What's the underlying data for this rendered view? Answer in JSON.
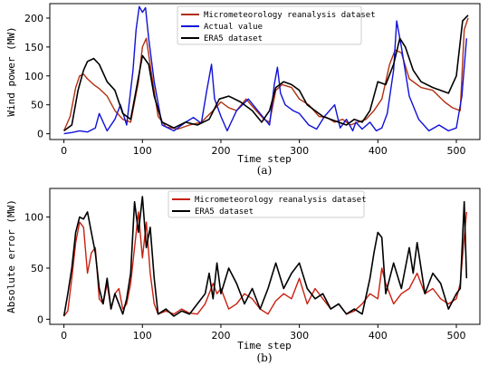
{
  "panels": [
    {
      "ylabel": "Wind power (MW)",
      "xlabel": "Time step",
      "caption": "(a)",
      "legend": [
        "Micrometeorology reanalysis dataset",
        "Actual value",
        "ERA5 dataset"
      ]
    },
    {
      "ylabel": "Absolute error (MW)",
      "xlabel": "Time step",
      "caption": "(b)",
      "legend": [
        "Micrometeorology reanalysis dataset",
        "ERA5 dataset"
      ]
    }
  ],
  "chart_data": [
    {
      "type": "line",
      "title": "",
      "xlabel": "Time step",
      "ylabel": "Wind power (MW)",
      "xlim": [
        -18,
        530
      ],
      "ylim": [
        -10,
        225
      ],
      "xticks": [
        0,
        100,
        200,
        300,
        400,
        500
      ],
      "yticks": [
        0,
        50,
        100,
        150,
        200
      ],
      "grid": false,
      "legend_position": "top-center",
      "series": [
        {
          "name": "Micrometeorology reanalysis dataset",
          "color": "#b03010",
          "x": [
            0,
            8,
            15,
            20,
            25,
            30,
            38,
            45,
            55,
            65,
            75,
            85,
            95,
            100,
            105,
            112,
            120,
            130,
            145,
            160,
            175,
            190,
            200,
            210,
            220,
            232,
            245,
            255,
            262,
            270,
            278,
            290,
            300,
            312,
            325,
            335,
            345,
            355,
            365,
            375,
            385,
            395,
            405,
            415,
            422,
            430,
            440,
            455,
            470,
            485,
            495,
            505,
            510,
            515
          ],
          "y": [
            5,
            30,
            80,
            100,
            103,
            95,
            85,
            78,
            65,
            40,
            25,
            20,
            90,
            150,
            165,
            100,
            30,
            12,
            8,
            15,
            20,
            40,
            55,
            45,
            40,
            60,
            40,
            25,
            20,
            75,
            85,
            80,
            60,
            50,
            30,
            28,
            20,
            25,
            15,
            20,
            25,
            40,
            60,
            120,
            145,
            140,
            95,
            80,
            75,
            55,
            45,
            40,
            180,
            200
          ]
        },
        {
          "name": "Actual value",
          "color": "#1010d8",
          "x": [
            0,
            10,
            20,
            30,
            40,
            45,
            55,
            65,
            72,
            80,
            88,
            92,
            96,
            100,
            104,
            108,
            115,
            125,
            140,
            155,
            165,
            175,
            182,
            188,
            192,
            200,
            208,
            220,
            235,
            250,
            262,
            268,
            272,
            276,
            282,
            292,
            300,
            312,
            322,
            332,
            345,
            352,
            360,
            368,
            372,
            380,
            390,
            398,
            405,
            412,
            420,
            424,
            430,
            440,
            452,
            465,
            478,
            490,
            500,
            507,
            513
          ],
          "y": [
            0,
            2,
            5,
            3,
            10,
            35,
            5,
            25,
            50,
            15,
            110,
            180,
            220,
            210,
            218,
            165,
            90,
            15,
            5,
            20,
            28,
            18,
            75,
            120,
            60,
            30,
            5,
            40,
            60,
            35,
            15,
            85,
            115,
            70,
            50,
            40,
            35,
            15,
            8,
            30,
            50,
            10,
            25,
            5,
            20,
            8,
            20,
            5,
            10,
            35,
            110,
            195,
            150,
            65,
            25,
            5,
            15,
            5,
            10,
            65,
            165
          ]
        },
        {
          "name": "ERA5 dataset",
          "color": "#000000",
          "x": [
            0,
            10,
            18,
            25,
            30,
            38,
            45,
            55,
            65,
            75,
            85,
            92,
            100,
            108,
            115,
            125,
            140,
            155,
            170,
            185,
            198,
            210,
            225,
            240,
            252,
            262,
            270,
            280,
            290,
            300,
            310,
            320,
            330,
            340,
            350,
            360,
            370,
            380,
            390,
            400,
            410,
            420,
            428,
            435,
            445,
            455,
            470,
            490,
            500,
            508,
            515
          ],
          "y": [
            5,
            15,
            75,
            110,
            125,
            130,
            120,
            90,
            75,
            35,
            25,
            75,
            135,
            120,
            65,
            20,
            10,
            20,
            15,
            25,
            60,
            65,
            55,
            40,
            20,
            40,
            80,
            90,
            85,
            75,
            50,
            40,
            30,
            25,
            20,
            15,
            25,
            20,
            40,
            90,
            85,
            120,
            165,
            150,
            110,
            90,
            80,
            70,
            100,
            195,
            205
          ]
        }
      ]
    },
    {
      "type": "line",
      "title": "",
      "xlabel": "Time step",
      "ylabel": "Absolute error (MW)",
      "xlim": [
        -18,
        530
      ],
      "ylim": [
        -5,
        128
      ],
      "xticks": [
        0,
        100,
        200,
        300,
        400,
        500
      ],
      "yticks": [
        0,
        50,
        100
      ],
      "grid": false,
      "legend_position": "top-center",
      "series": [
        {
          "name": "Micrometeorology reanalysis dataset",
          "color": "#c82010",
          "x": [
            0,
            5,
            10,
            15,
            20,
            25,
            30,
            35,
            40,
            45,
            50,
            55,
            60,
            65,
            70,
            75,
            80,
            85,
            90,
            95,
            100,
            105,
            110,
            115,
            120,
            130,
            140,
            150,
            160,
            170,
            180,
            190,
            195,
            200,
            210,
            220,
            230,
            240,
            250,
            260,
            270,
            280,
            290,
            300,
            310,
            320,
            330,
            340,
            350,
            360,
            370,
            380,
            390,
            400,
            405,
            410,
            420,
            430,
            440,
            450,
            460,
            470,
            480,
            490,
            500,
            505,
            510,
            513
          ],
          "y": [
            3,
            8,
            40,
            75,
            95,
            90,
            45,
            65,
            70,
            20,
            15,
            35,
            10,
            25,
            30,
            10,
            15,
            35,
            70,
            105,
            60,
            95,
            45,
            15,
            5,
            8,
            5,
            10,
            6,
            5,
            15,
            35,
            25,
            30,
            10,
            15,
            25,
            20,
            10,
            5,
            18,
            25,
            20,
            40,
            15,
            30,
            20,
            10,
            15,
            5,
            8,
            15,
            25,
            20,
            50,
            35,
            15,
            25,
            30,
            45,
            25,
            30,
            20,
            15,
            20,
            35,
            80,
            105
          ]
        },
        {
          "name": "ERA5 dataset",
          "color": "#000000",
          "x": [
            0,
            5,
            10,
            15,
            20,
            25,
            30,
            35,
            40,
            45,
            50,
            55,
            60,
            65,
            70,
            75,
            80,
            85,
            90,
            95,
            100,
            105,
            110,
            115,
            120,
            130,
            140,
            150,
            160,
            170,
            180,
            185,
            190,
            195,
            200,
            210,
            220,
            230,
            240,
            250,
            260,
            270,
            280,
            290,
            300,
            310,
            320,
            330,
            340,
            350,
            360,
            370,
            380,
            390,
            395,
            400,
            405,
            410,
            420,
            430,
            440,
            445,
            450,
            460,
            470,
            480,
            490,
            500,
            505,
            510,
            513
          ],
          "y": [
            3,
            25,
            50,
            85,
            100,
            98,
            105,
            85,
            65,
            30,
            15,
            40,
            10,
            25,
            15,
            5,
            20,
            45,
            115,
            85,
            120,
            70,
            90,
            40,
            5,
            10,
            3,
            8,
            5,
            15,
            25,
            45,
            20,
            55,
            25,
            50,
            35,
            15,
            30,
            10,
            30,
            55,
            30,
            45,
            55,
            30,
            20,
            25,
            10,
            15,
            5,
            10,
            5,
            40,
            65,
            85,
            80,
            25,
            55,
            30,
            70,
            45,
            75,
            25,
            45,
            35,
            10,
            25,
            30,
            115,
            40
          ]
        }
      ]
    }
  ]
}
